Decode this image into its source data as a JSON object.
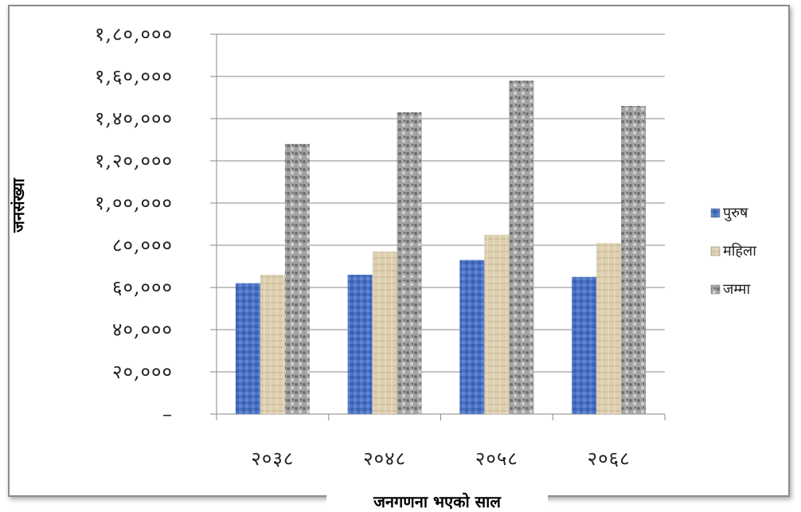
{
  "chart_data": {
    "type": "bar",
    "title": "",
    "xlabel": "जनगणना भएको साल",
    "ylabel": "जनसंख्या",
    "categories": [
      "२०३८",
      "२०४८",
      "२०५८",
      "२०६८"
    ],
    "series": [
      {
        "name": "पुरुष",
        "values": [
          62000,
          66000,
          73000,
          65000
        ],
        "color": "#4a72c4"
      },
      {
        "name": "महिला",
        "values": [
          66000,
          77000,
          85000,
          81000
        ],
        "color": "#d9c9a8"
      },
      {
        "name": "जम्मा",
        "values": [
          128000,
          143000,
          158000,
          146000
        ],
        "color": "#9a9a9a"
      }
    ],
    "ylim": [
      0,
      180000
    ],
    "yticks": [
      0,
      20000,
      40000,
      60000,
      80000,
      100000,
      120000,
      140000,
      160000,
      180000
    ],
    "ytick_labels": [
      "–",
      "२०,०००",
      "४०,०००",
      "६०,०००",
      "८०,०००",
      "१,००,०००",
      "१,२०,०००",
      "१,४०,०००",
      "१,६०,०००",
      "१,८०,०००"
    ],
    "grid": true,
    "legend_position": "right"
  }
}
